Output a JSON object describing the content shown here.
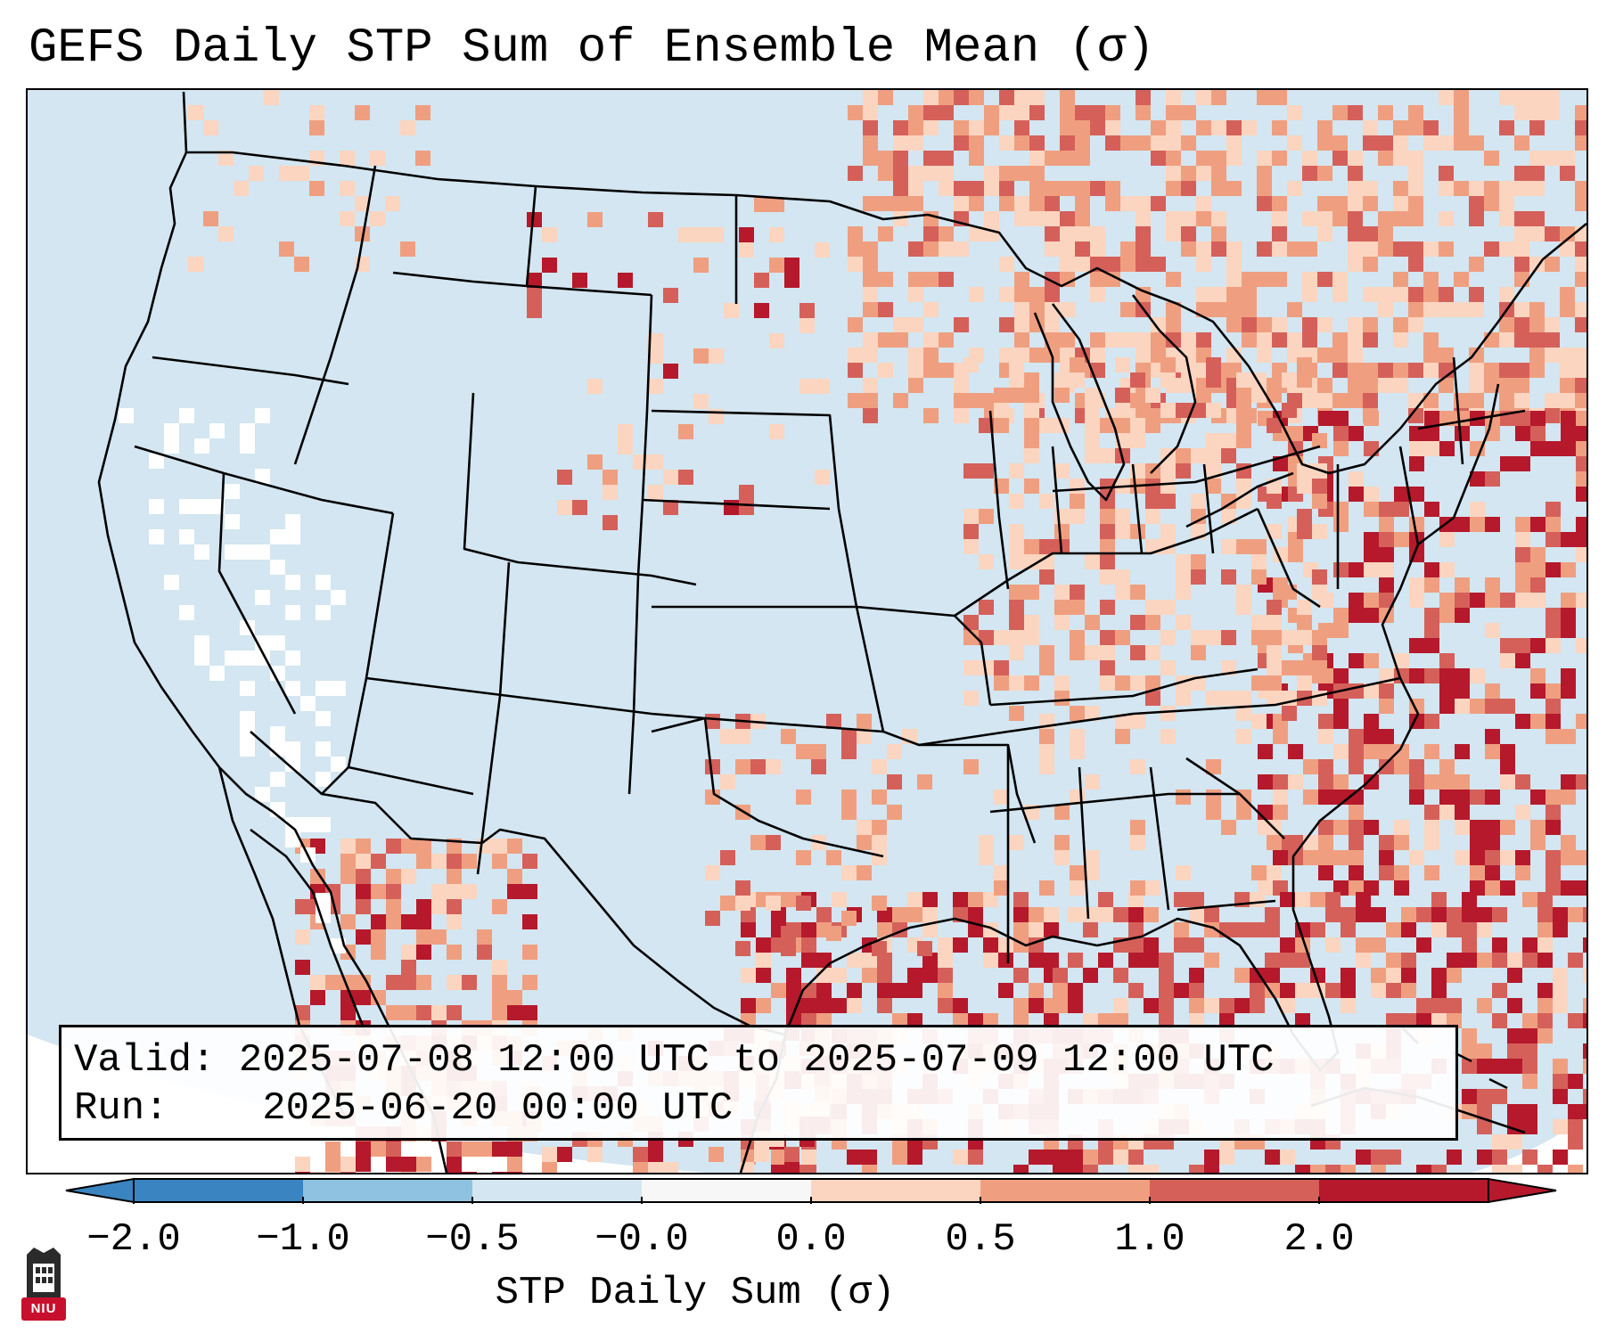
{
  "title": "GEFS Daily STP Sum of Ensemble Mean (σ)",
  "info": {
    "valid_label": "Valid:",
    "valid_value": "2025-07-08 12:00 UTC to 2025-07-09 12:00 UTC",
    "run_label": "Run:",
    "run_value": "2025-06-20 00:00 UTC"
  },
  "colorbar": {
    "label": "STP Daily Sum (σ)",
    "ticks": [
      "−2.0",
      "−1.0",
      "−0.5",
      "−0.0",
      "0.0",
      "0.5",
      "1.0",
      "2.0"
    ],
    "colors": [
      "#3a84c1",
      "#8fc2e0",
      "#d3e6f1",
      "#f7f7f7",
      "#fbd5c0",
      "#ef9f80",
      "#d5605a",
      "#b5192b"
    ],
    "extend": "both"
  },
  "map": {
    "background_color": "#d3e6f1",
    "land_outline_color": "#000000",
    "legend": "colored grid cells show STP sigma anomaly"
  },
  "logo": {
    "text": "NIU",
    "color": "#c8102e"
  }
}
